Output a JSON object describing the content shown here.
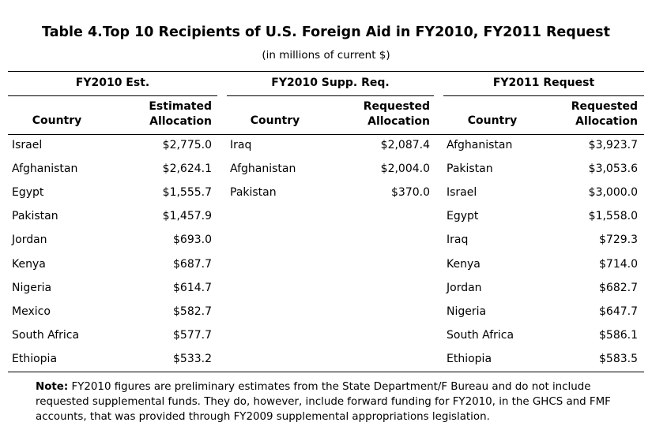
{
  "title": "Table 4.Top 10 Recipients of U.S. Foreign Aid in FY2010, FY2011 Request",
  "subtitle": "(in millions of current $)",
  "groups": [
    {
      "label": "FY2010 Est.",
      "country_header": "Country",
      "value_header_1": "Estimated",
      "value_header_2": "Allocation",
      "rows": [
        {
          "country": "Israel",
          "value": "$2,775.0"
        },
        {
          "country": "Afghanistan",
          "value": "$2,624.1"
        },
        {
          "country": "Egypt",
          "value": "$1,555.7"
        },
        {
          "country": "Pakistan",
          "value": "$1,457.9"
        },
        {
          "country": "Jordan",
          "value": "$693.0"
        },
        {
          "country": "Kenya",
          "value": "$687.7"
        },
        {
          "country": "Nigeria",
          "value": "$614.7"
        },
        {
          "country": "Mexico",
          "value": "$582.7"
        },
        {
          "country": "South Africa",
          "value": "$577.7"
        },
        {
          "country": "Ethiopia",
          "value": "$533.2"
        }
      ]
    },
    {
      "label": "FY2010 Supp. Req.",
      "country_header": "Country",
      "value_header_1": "Requested",
      "value_header_2": "Allocation",
      "rows": [
        {
          "country": "Iraq",
          "value": "$2,087.4"
        },
        {
          "country": "Afghanistan",
          "value": "$2,004.0"
        },
        {
          "country": "Pakistan",
          "value": "$370.0"
        }
      ]
    },
    {
      "label": "FY2011 Request",
      "country_header": "Country",
      "value_header_1": "Requested",
      "value_header_2": "Allocation",
      "rows": [
        {
          "country": "Afghanistan",
          "value": "$3,923.7"
        },
        {
          "country": "Pakistan",
          "value": "$3,053.6"
        },
        {
          "country": "Israel",
          "value": "$3,000.0"
        },
        {
          "country": "Egypt",
          "value": "$1,558.0"
        },
        {
          "country": "Iraq",
          "value": "$729.3"
        },
        {
          "country": "Kenya",
          "value": "$714.0"
        },
        {
          "country": "Jordan",
          "value": "$682.7"
        },
        {
          "country": "Nigeria",
          "value": "$647.7"
        },
        {
          "country": "South Africa",
          "value": "$586.1"
        },
        {
          "country": "Ethiopia",
          "value": "$583.5"
        }
      ]
    }
  ],
  "note": {
    "label": "Note:",
    "text": "FY2010 figures are preliminary estimates from the State Department/F Bureau and do not include requested supplemental funds. They do, however, include forward funding for FY2010, in the GHCS and FMF accounts, that was provided through FY2009 supplemental appropriations legislation."
  }
}
